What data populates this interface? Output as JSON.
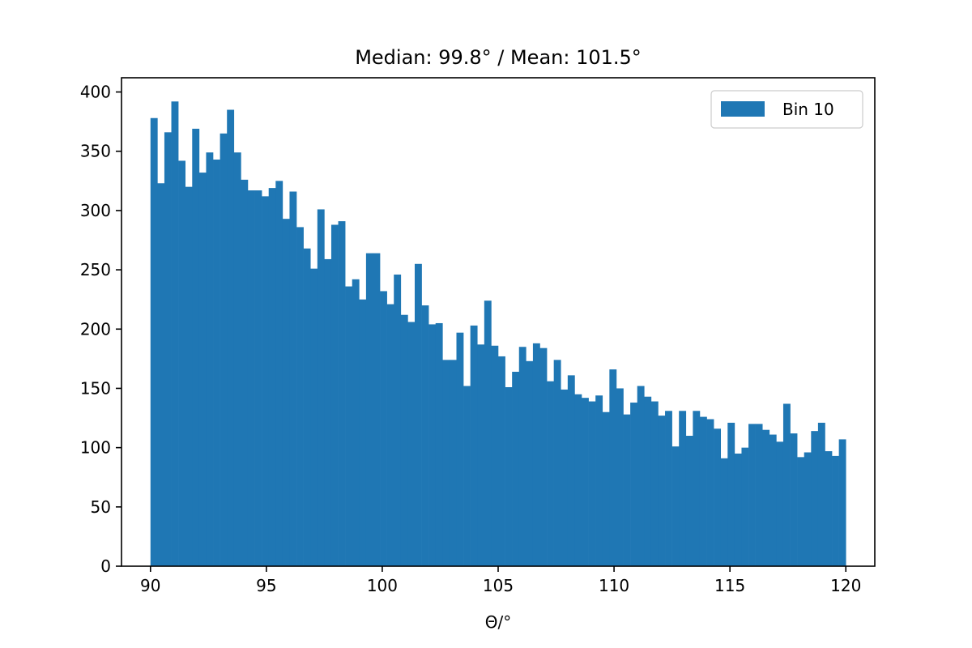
{
  "chart_data": {
    "type": "bar",
    "title": "Median: 99.8° / Mean: 101.5°",
    "xlabel": "Θ/°",
    "ylabel": "",
    "xlim": [
      88.75,
      121.25
    ],
    "ylim": [
      0,
      412
    ],
    "bin_width": 0.3,
    "xticks": [
      90,
      95,
      100,
      105,
      110,
      115,
      120
    ],
    "yticks": [
      0,
      50,
      100,
      150,
      200,
      250,
      300,
      350,
      400
    ],
    "xtick_labels": [
      "90",
      "95",
      "100",
      "105",
      "110",
      "115",
      "120"
    ],
    "ytick_labels": [
      "0",
      "50",
      "100",
      "150",
      "200",
      "250",
      "300",
      "350",
      "400"
    ],
    "grid": false,
    "legend_position": "top-right",
    "series": [
      {
        "name": "Bin 10",
        "color": "#1f77b4",
        "x": [
          90.0,
          90.3,
          90.6,
          90.9,
          91.2,
          91.5,
          91.8,
          92.1,
          92.4,
          92.7,
          93.0,
          93.3,
          93.6,
          93.9,
          94.2,
          94.5,
          94.8,
          95.1,
          95.4,
          95.7,
          96.0,
          96.3,
          96.6,
          96.9,
          97.2,
          97.5,
          97.8,
          98.1,
          98.4,
          98.7,
          99.0,
          99.3,
          99.6,
          99.9,
          100.2,
          100.5,
          100.8,
          101.1,
          101.4,
          101.7,
          102.0,
          102.3,
          102.6,
          102.9,
          103.2,
          103.5,
          103.8,
          104.1,
          104.4,
          104.7,
          105.0,
          105.3,
          105.6,
          105.9,
          106.2,
          106.5,
          106.8,
          107.1,
          107.4,
          107.7,
          108.0,
          108.3,
          108.6,
          108.9,
          109.2,
          109.5,
          109.8,
          110.1,
          110.4,
          110.7,
          111.0,
          111.3,
          111.6,
          111.9,
          112.2,
          112.5,
          112.8,
          113.1,
          113.4,
          113.7,
          114.0,
          114.3,
          114.6,
          114.9,
          115.2,
          115.5,
          115.8,
          116.1,
          116.4,
          116.7,
          117.0,
          117.3,
          117.6,
          117.9,
          118.2,
          118.5,
          118.8,
          119.1,
          119.4,
          119.7
        ],
        "values": [
          378,
          323,
          366,
          392,
          342,
          320,
          369,
          332,
          349,
          343,
          365,
          385,
          349,
          326,
          317,
          317,
          312,
          319,
          325,
          293,
          316,
          286,
          268,
          251,
          301,
          259,
          288,
          291,
          236,
          242,
          225,
          264,
          264,
          232,
          221,
          246,
          212,
          206,
          255,
          220,
          204,
          205,
          174,
          174,
          197,
          152,
          203,
          187,
          224,
          186,
          177,
          151,
          164,
          185,
          173,
          188,
          184,
          156,
          174,
          149,
          161,
          145,
          142,
          139,
          144,
          130,
          166,
          150,
          128,
          138,
          152,
          143,
          139,
          127,
          131,
          101,
          131,
          110,
          131,
          126,
          124,
          116,
          91,
          121,
          95,
          100,
          120,
          120,
          115,
          111,
          105,
          137,
          112,
          92,
          96,
          114,
          121,
          97,
          93,
          107
        ]
      }
    ]
  }
}
